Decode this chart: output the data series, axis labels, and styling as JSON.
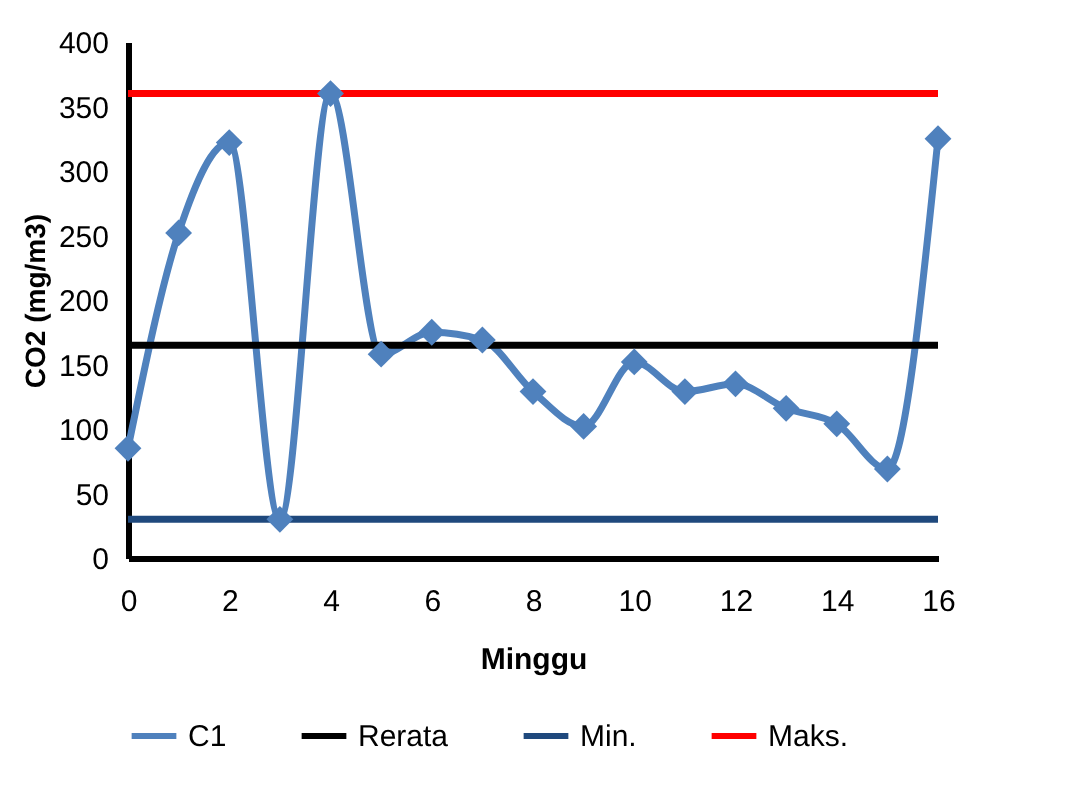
{
  "chart_data": {
    "type": "line",
    "xlabel": "Minggu",
    "ylabel": "CO2 (mg/m3)",
    "xlim": [
      0,
      16
    ],
    "xticks": [
      0,
      2,
      4,
      6,
      8,
      10,
      12,
      14,
      16
    ],
    "ylim": [
      0,
      400
    ],
    "yticks": [
      0,
      50,
      100,
      150,
      200,
      250,
      300,
      350,
      400
    ],
    "grid": false,
    "legend": "bottom",
    "series": [
      {
        "name": "C1",
        "color": "#4f81bd",
        "marker": "diamond",
        "x": [
          0,
          1,
          2,
          3,
          4,
          5,
          6,
          7,
          8,
          9,
          10,
          11,
          12,
          13,
          14,
          15,
          16
        ],
        "values": [
          85,
          252,
          322,
          30,
          360,
          158,
          175,
          169,
          129,
          102,
          152,
          129,
          135,
          116,
          104,
          69,
          325
        ]
      },
      {
        "name": "Rerata",
        "color": "#000000",
        "marker": "none",
        "x": [
          0,
          16
        ],
        "values": [
          165,
          165
        ]
      },
      {
        "name": "Min.",
        "color": "#1f497d",
        "marker": "none",
        "x": [
          0,
          16
        ],
        "values": [
          30,
          30
        ]
      },
      {
        "name": "Maks.",
        "color": "#ff0000",
        "marker": "none",
        "x": [
          0,
          16
        ],
        "values": [
          360,
          360
        ]
      }
    ]
  }
}
